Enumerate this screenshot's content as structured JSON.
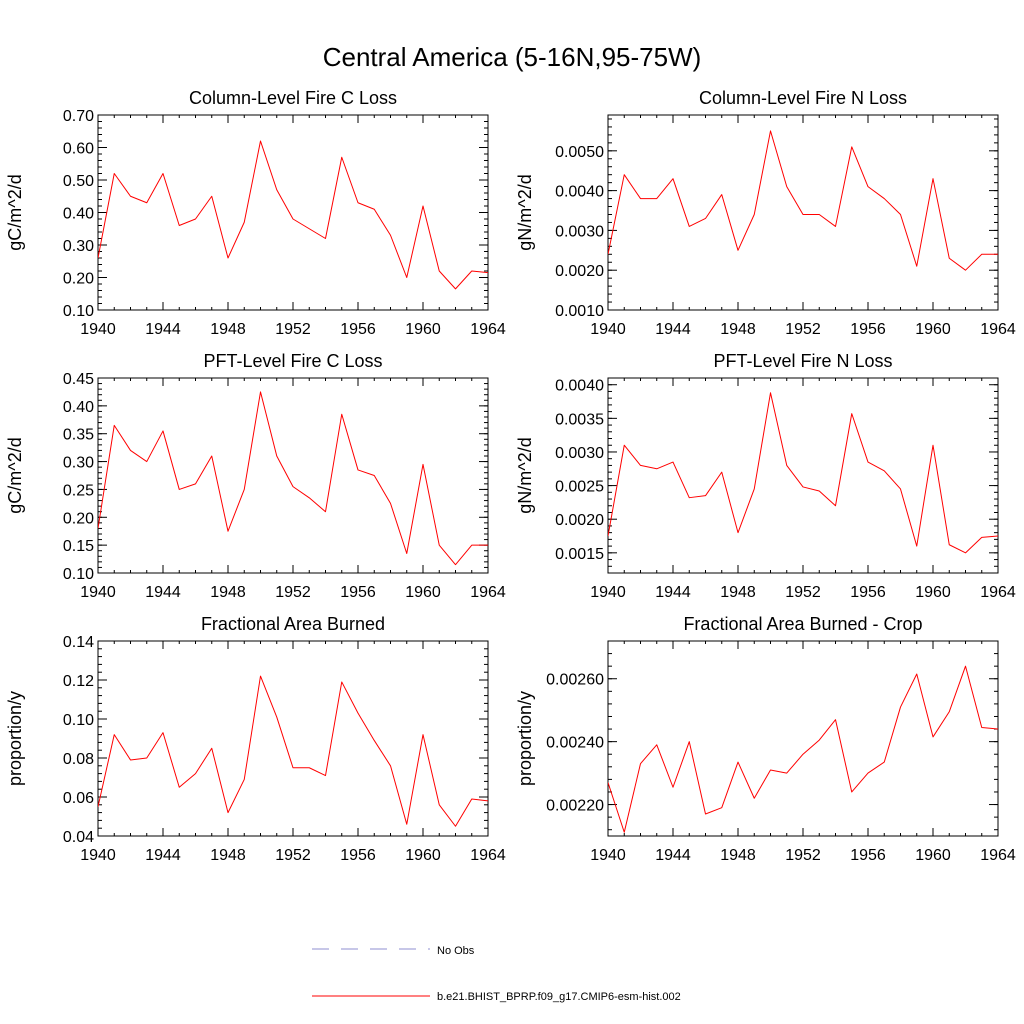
{
  "figure": {
    "title": "Central America (5-16N,95-75W)"
  },
  "colors": {
    "series": "#ff0000",
    "obs": "#8f8fd0",
    "axis": "#000000"
  },
  "legend": {
    "placement": "bottom-center",
    "items": [
      {
        "label": "No Obs",
        "style": "dashed",
        "color": "#8f8fd0"
      },
      {
        "label": "b.e21.BHIST_BPRP.f09_g17.CMIP6-esm-hist.002",
        "style": "solid",
        "color": "#ff0000"
      }
    ]
  },
  "chart_data": [
    {
      "type": "line",
      "title": "Column-Level Fire C Loss",
      "ylabel": "gC/m^2/d",
      "xlim": [
        1940,
        1964
      ],
      "ylim": [
        0.1,
        0.7
      ],
      "xticks": [
        1940,
        1944,
        1948,
        1952,
        1956,
        1960,
        1964
      ],
      "yticks": [
        0.1,
        0.2,
        0.3,
        0.4,
        0.5,
        0.6,
        0.7
      ],
      "ytick_labels": [
        "0.10",
        "0.20",
        "0.30",
        "0.40",
        "0.50",
        "0.60",
        "0.70"
      ],
      "x": [
        1940,
        1941,
        1942,
        1943,
        1944,
        1945,
        1946,
        1947,
        1948,
        1949,
        1950,
        1951,
        1952,
        1953,
        1954,
        1955,
        1956,
        1957,
        1958,
        1959,
        1960,
        1961,
        1962,
        1963,
        1964
      ],
      "series": [
        {
          "values": [
            0.26,
            0.52,
            0.45,
            0.43,
            0.52,
            0.36,
            0.38,
            0.45,
            0.26,
            0.37,
            0.62,
            0.47,
            0.38,
            0.35,
            0.32,
            0.57,
            0.43,
            0.41,
            0.33,
            0.2,
            0.42,
            0.22,
            0.165,
            0.22,
            0.215
          ]
        }
      ]
    },
    {
      "type": "line",
      "title": "Column-Level Fire N Loss",
      "ylabel": "gN/m^2/d",
      "xlim": [
        1940,
        1964
      ],
      "ylim": [
        0.001,
        0.0059
      ],
      "xticks": [
        1940,
        1944,
        1948,
        1952,
        1956,
        1960,
        1964
      ],
      "yticks": [
        0.001,
        0.002,
        0.003,
        0.004,
        0.005
      ],
      "ytick_labels": [
        "0.0010",
        "0.0020",
        "0.0030",
        "0.0040",
        "0.0050"
      ],
      "x": [
        1940,
        1941,
        1942,
        1943,
        1944,
        1945,
        1946,
        1947,
        1948,
        1949,
        1950,
        1951,
        1952,
        1953,
        1954,
        1955,
        1956,
        1957,
        1958,
        1959,
        1960,
        1961,
        1962,
        1963,
        1964
      ],
      "series": [
        {
          "values": [
            0.0024,
            0.0044,
            0.0038,
            0.0038,
            0.0043,
            0.0031,
            0.0033,
            0.0039,
            0.0025,
            0.0034,
            0.0055,
            0.0041,
            0.0034,
            0.0034,
            0.0031,
            0.0051,
            0.0041,
            0.0038,
            0.0034,
            0.0021,
            0.0043,
            0.0023,
            0.002,
            0.0024,
            0.0024
          ]
        }
      ]
    },
    {
      "type": "line",
      "title": "PFT-Level Fire C Loss",
      "ylabel": "gC/m^2/d",
      "xlim": [
        1940,
        1964
      ],
      "ylim": [
        0.1,
        0.45
      ],
      "xticks": [
        1940,
        1944,
        1948,
        1952,
        1956,
        1960,
        1964
      ],
      "yticks": [
        0.1,
        0.15,
        0.2,
        0.25,
        0.3,
        0.35,
        0.4,
        0.45
      ],
      "ytick_labels": [
        "0.10",
        "0.15",
        "0.20",
        "0.25",
        "0.30",
        "0.35",
        "0.40",
        "0.45"
      ],
      "x": [
        1940,
        1941,
        1942,
        1943,
        1944,
        1945,
        1946,
        1947,
        1948,
        1949,
        1950,
        1951,
        1952,
        1953,
        1954,
        1955,
        1956,
        1957,
        1958,
        1959,
        1960,
        1961,
        1962,
        1963,
        1964
      ],
      "series": [
        {
          "values": [
            0.18,
            0.365,
            0.32,
            0.3,
            0.355,
            0.25,
            0.26,
            0.31,
            0.175,
            0.25,
            0.425,
            0.31,
            0.255,
            0.235,
            0.21,
            0.385,
            0.285,
            0.275,
            0.225,
            0.135,
            0.295,
            0.15,
            0.115,
            0.15,
            0.15
          ]
        }
      ]
    },
    {
      "type": "line",
      "title": "PFT-Level Fire N Loss",
      "ylabel": "gN/m^2/d",
      "xlim": [
        1940,
        1964
      ],
      "ylim": [
        0.0012,
        0.0041
      ],
      "xticks": [
        1940,
        1944,
        1948,
        1952,
        1956,
        1960,
        1964
      ],
      "yticks": [
        0.0015,
        0.002,
        0.0025,
        0.003,
        0.0035,
        0.004
      ],
      "ytick_labels": [
        "0.0015",
        "0.0020",
        "0.0025",
        "0.0030",
        "0.0035",
        "0.0040"
      ],
      "x": [
        1940,
        1941,
        1942,
        1943,
        1944,
        1945,
        1946,
        1947,
        1948,
        1949,
        1950,
        1951,
        1952,
        1953,
        1954,
        1955,
        1956,
        1957,
        1958,
        1959,
        1960,
        1961,
        1962,
        1963,
        1964
      ],
      "series": [
        {
          "values": [
            0.00175,
            0.0031,
            0.0028,
            0.00275,
            0.00285,
            0.00232,
            0.00235,
            0.0027,
            0.0018,
            0.00245,
            0.00388,
            0.0028,
            0.00248,
            0.00242,
            0.0022,
            0.00357,
            0.00285,
            0.00272,
            0.00245,
            0.0016,
            0.0031,
            0.00162,
            0.0015,
            0.00173,
            0.00175
          ]
        }
      ]
    },
    {
      "type": "line",
      "title": "Fractional Area Burned",
      "ylabel": "proportion/y",
      "xlim": [
        1940,
        1964
      ],
      "ylim": [
        0.04,
        0.14
      ],
      "xticks": [
        1940,
        1944,
        1948,
        1952,
        1956,
        1960,
        1964
      ],
      "yticks": [
        0.04,
        0.06,
        0.08,
        0.1,
        0.12,
        0.14
      ],
      "ytick_labels": [
        "0.04",
        "0.06",
        "0.08",
        "0.10",
        "0.12",
        "0.14"
      ],
      "x": [
        1940,
        1941,
        1942,
        1943,
        1944,
        1945,
        1946,
        1947,
        1948,
        1949,
        1950,
        1951,
        1952,
        1953,
        1954,
        1955,
        1956,
        1957,
        1958,
        1959,
        1960,
        1961,
        1962,
        1963,
        1964
      ],
      "series": [
        {
          "values": [
            0.055,
            0.092,
            0.079,
            0.08,
            0.093,
            0.065,
            0.072,
            0.085,
            0.052,
            0.069,
            0.122,
            0.101,
            0.075,
            0.075,
            0.071,
            0.119,
            0.103,
            0.089,
            0.076,
            0.046,
            0.092,
            0.056,
            0.045,
            0.059,
            0.058
          ]
        }
      ]
    },
    {
      "type": "line",
      "title": "Fractional Area Burned - Crop",
      "ylabel": "proportion/y",
      "xlim": [
        1940,
        1964
      ],
      "ylim": [
        0.0021,
        0.00272
      ],
      "xticks": [
        1940,
        1944,
        1948,
        1952,
        1956,
        1960,
        1964
      ],
      "yticks": [
        0.0022,
        0.0024,
        0.0026
      ],
      "ytick_labels": [
        "0.00220",
        "0.00240",
        "0.00260"
      ],
      "x": [
        1940,
        1941,
        1942,
        1943,
        1944,
        1945,
        1946,
        1947,
        1948,
        1949,
        1950,
        1951,
        1952,
        1953,
        1954,
        1955,
        1956,
        1957,
        1958,
        1959,
        1960,
        1961,
        1962,
        1963,
        1964
      ],
      "series": [
        {
          "values": [
            0.00227,
            0.002112,
            0.00233,
            0.00239,
            0.002255,
            0.0024,
            0.00217,
            0.00219,
            0.002335,
            0.00222,
            0.00231,
            0.0023,
            0.00236,
            0.002405,
            0.00247,
            0.00224,
            0.0023,
            0.002335,
            0.00251,
            0.002615,
            0.002415,
            0.002495,
            0.00264,
            0.002445,
            0.00244
          ]
        }
      ]
    }
  ]
}
